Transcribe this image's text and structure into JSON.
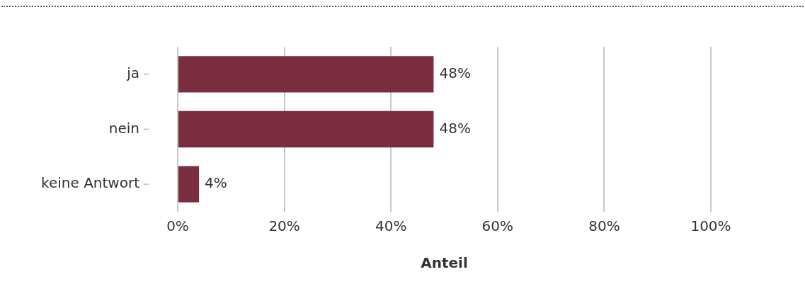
{
  "chart_data": {
    "type": "bar",
    "orientation": "horizontal",
    "xlabel": "Anteil",
    "categories": [
      "ja",
      "nein",
      "keine Antwort"
    ],
    "values": [
      48,
      48,
      4
    ],
    "value_labels": [
      "48%",
      "48%",
      "4%"
    ],
    "color": "#7b2d40",
    "xlim": [
      0,
      100
    ],
    "xticks": [
      {
        "value": 0,
        "label": "0%"
      },
      {
        "value": 20,
        "label": "20%"
      },
      {
        "value": 40,
        "label": "40%"
      },
      {
        "value": 60,
        "label": "60%"
      },
      {
        "value": 80,
        "label": "80%"
      },
      {
        "value": 100,
        "label": "100%"
      }
    ],
    "grid": "x",
    "legend": false
  }
}
